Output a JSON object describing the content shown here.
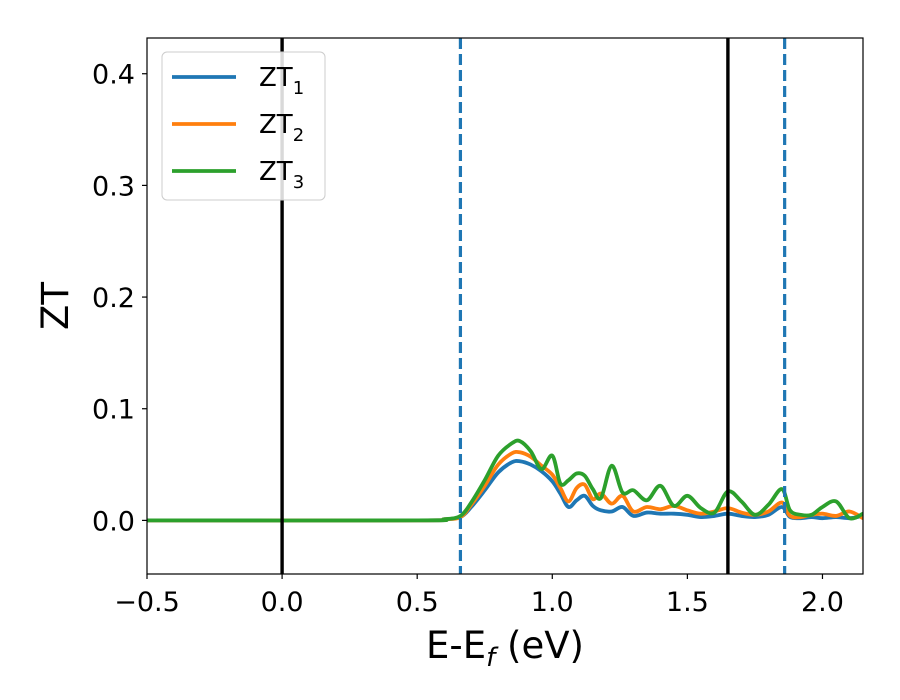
{
  "chart_data": {
    "type": "line",
    "xlabel": "E-E",
    "xlabel_sub": "f",
    "xlabel_unit": " (eV)",
    "ylabel": "ZT",
    "xlim": [
      -0.5,
      2.15
    ],
    "ylim": [
      -0.048,
      0.432
    ],
    "xticks": [
      -0.5,
      0.0,
      0.5,
      1.0,
      1.5,
      2.0
    ],
    "xtick_labels": [
      "−0.5",
      "0.0",
      "0.5",
      "1.0",
      "1.5",
      "2.0"
    ],
    "yticks": [
      0.0,
      0.1,
      0.2,
      0.3,
      0.4
    ],
    "ytick_labels": [
      "0.0",
      "0.1",
      "0.2",
      "0.3",
      "0.4"
    ],
    "grid": false,
    "legend_position": "top-left",
    "vlines": [
      {
        "x": 0.0,
        "style": "solid",
        "color": "#000000"
      },
      {
        "x": 1.65,
        "style": "solid",
        "color": "#000000"
      },
      {
        "x": 0.66,
        "style": "dashed",
        "color": "#1f77b4"
      },
      {
        "x": 1.86,
        "style": "dashed",
        "color": "#1f77b4"
      }
    ],
    "series": [
      {
        "name": "ZT",
        "name_sub": "1",
        "color": "#1f77b4",
        "x": [
          -0.5,
          0.5,
          0.6,
          0.66,
          0.7,
          0.75,
          0.8,
          0.85,
          0.88,
          0.92,
          0.96,
          1.0,
          1.03,
          1.06,
          1.09,
          1.12,
          1.15,
          1.18,
          1.22,
          1.26,
          1.3,
          1.35,
          1.4,
          1.45,
          1.5,
          1.55,
          1.6,
          1.65,
          1.7,
          1.75,
          1.8,
          1.85,
          1.88,
          1.92,
          1.96,
          2.0,
          2.05,
          2.1,
          2.15
        ],
        "values": [
          0.0,
          0.0,
          0.001,
          0.003,
          0.012,
          0.027,
          0.043,
          0.052,
          0.053,
          0.05,
          0.044,
          0.035,
          0.024,
          0.012,
          0.018,
          0.022,
          0.013,
          0.009,
          0.008,
          0.012,
          0.004,
          0.007,
          0.006,
          0.006,
          0.005,
          0.003,
          0.004,
          0.006,
          0.004,
          0.003,
          0.005,
          0.012,
          0.003,
          0.002,
          0.003,
          0.002,
          0.003,
          0.002,
          0.004
        ]
      },
      {
        "name": "ZT",
        "name_sub": "2",
        "color": "#ff7f0e",
        "x": [
          -0.5,
          0.5,
          0.6,
          0.66,
          0.7,
          0.75,
          0.8,
          0.85,
          0.88,
          0.92,
          0.96,
          1.0,
          1.03,
          1.06,
          1.09,
          1.12,
          1.15,
          1.18,
          1.22,
          1.26,
          1.3,
          1.35,
          1.4,
          1.45,
          1.5,
          1.55,
          1.6,
          1.65,
          1.7,
          1.75,
          1.8,
          1.85,
          1.88,
          1.92,
          1.96,
          2.0,
          2.05,
          2.1,
          2.15
        ],
        "values": [
          0.0,
          0.0,
          0.001,
          0.003,
          0.014,
          0.031,
          0.05,
          0.06,
          0.061,
          0.057,
          0.049,
          0.041,
          0.029,
          0.017,
          0.029,
          0.032,
          0.019,
          0.024,
          0.015,
          0.022,
          0.008,
          0.012,
          0.01,
          0.013,
          0.009,
          0.006,
          0.008,
          0.011,
          0.007,
          0.005,
          0.008,
          0.016,
          0.004,
          0.003,
          0.005,
          0.006,
          0.004,
          0.008,
          0.002
        ]
      },
      {
        "name": "ZT",
        "name_sub": "3",
        "color": "#2ca02c",
        "x": [
          -0.5,
          0.5,
          0.6,
          0.66,
          0.7,
          0.75,
          0.8,
          0.85,
          0.88,
          0.92,
          0.96,
          1.0,
          1.03,
          1.06,
          1.09,
          1.12,
          1.15,
          1.18,
          1.22,
          1.26,
          1.3,
          1.35,
          1.4,
          1.45,
          1.5,
          1.55,
          1.6,
          1.65,
          1.7,
          1.75,
          1.8,
          1.85,
          1.88,
          1.92,
          1.96,
          2.0,
          2.05,
          2.1,
          2.15
        ],
        "values": [
          0.0,
          0.0,
          0.001,
          0.004,
          0.016,
          0.036,
          0.058,
          0.069,
          0.071,
          0.062,
          0.046,
          0.058,
          0.033,
          0.036,
          0.042,
          0.04,
          0.028,
          0.02,
          0.049,
          0.025,
          0.027,
          0.018,
          0.031,
          0.013,
          0.022,
          0.011,
          0.007,
          0.026,
          0.017,
          0.005,
          0.014,
          0.028,
          0.009,
          0.005,
          0.005,
          0.012,
          0.017,
          0.002,
          0.006
        ]
      }
    ]
  }
}
